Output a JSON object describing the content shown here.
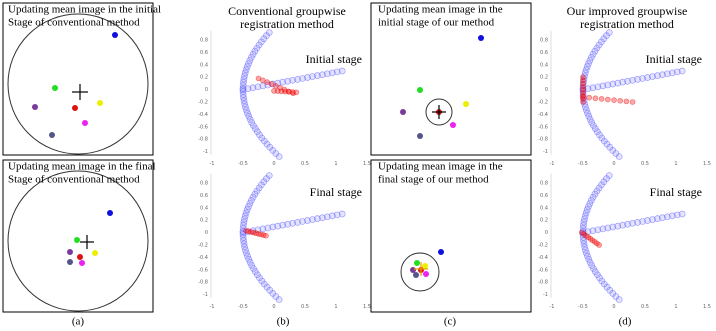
{
  "axis": {
    "xticks": [
      "-1",
      "-0.5",
      "0",
      "0.5",
      "1",
      "1.5"
    ],
    "yticks": [
      "0.8",
      "0.6",
      "0.4",
      "0.2",
      "0",
      "-0.2",
      "-0.4",
      "-0.6",
      "-0.8",
      "-1"
    ]
  },
  "panels": [
    {
      "label": "(a)",
      "boxes": [
        {
          "lines": [
            "Updating mean image in the initial",
            "Stage of conventional method"
          ]
        },
        {
          "lines": [
            "Updating mean image in the final",
            "Stage of conventional method"
          ]
        }
      ]
    },
    {
      "label": "(b)",
      "title": [
        "Conventional groupwise",
        "registration method"
      ],
      "plots": [
        {
          "stage": "Initial stage"
        },
        {
          "stage": "Final stage"
        }
      ]
    },
    {
      "label": "(c)",
      "boxes": [
        {
          "lines": [
            "Updating mean image in the",
            "initial stage of our method"
          ]
        },
        {
          "lines": [
            "Updating mean image in the",
            "final stage of our method"
          ]
        }
      ]
    },
    {
      "label": "(d)",
      "title": [
        "Our improved groupwise",
        "registration method"
      ],
      "plots": [
        {
          "stage": "Initial stage"
        },
        {
          "stage": "Final stage"
        }
      ]
    }
  ]
}
